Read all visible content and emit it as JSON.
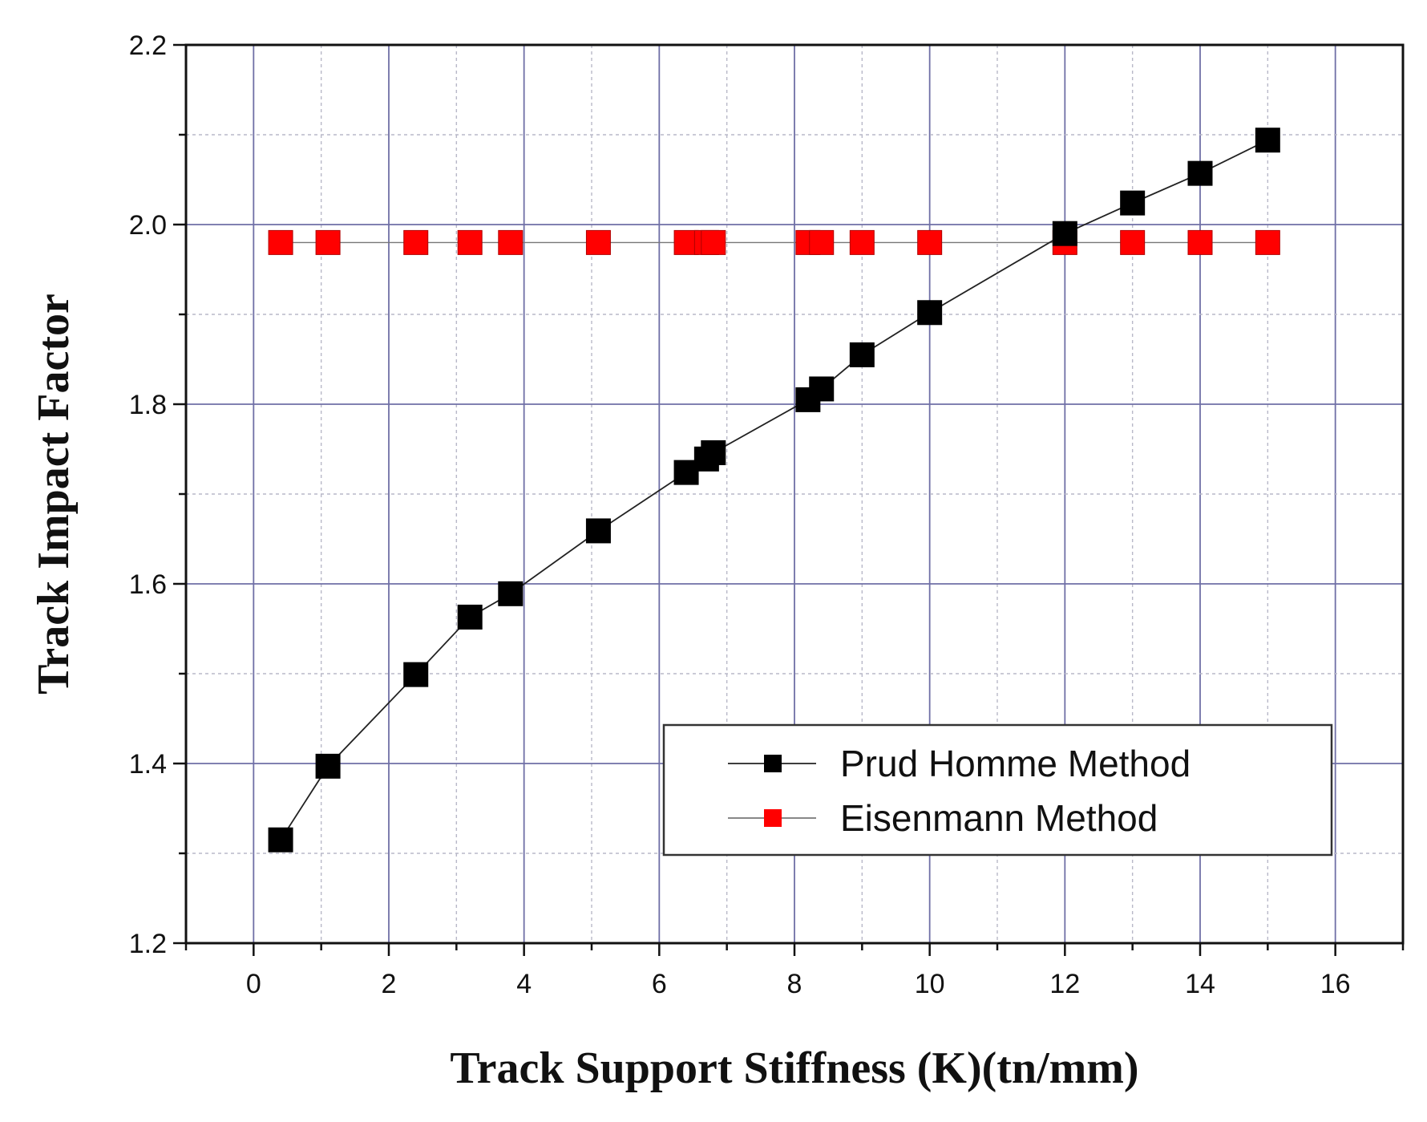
{
  "chart_data": {
    "type": "scatter",
    "xlabel": "Track Support Stiffness (K)(tn/mm)",
    "ylabel": "Track Impact Factor",
    "xlim": [
      -1,
      17
    ],
    "ylim": [
      1.2,
      2.2
    ],
    "x_ticks": [
      "0",
      "2",
      "4",
      "6",
      "8",
      "10",
      "12",
      "14",
      "16"
    ],
    "y_ticks": [
      "1.2",
      "1.4",
      "1.6",
      "1.8",
      "2.0",
      "2.2"
    ],
    "grid": true,
    "legend_position": "bottom-right",
    "series": [
      {
        "name": "Prud Homme Method",
        "color": "#000000",
        "marker": "square",
        "x": [
          0.4,
          1.1,
          2.4,
          3.2,
          3.8,
          5.1,
          6.4,
          6.7,
          6.8,
          8.2,
          8.4,
          9.0,
          10.0,
          12.0,
          13.0,
          14.0,
          15.0
        ],
        "y": [
          1.315,
          1.397,
          1.499,
          1.563,
          1.589,
          1.659,
          1.724,
          1.739,
          1.746,
          1.805,
          1.817,
          1.855,
          1.902,
          1.99,
          2.024,
          2.057,
          2.094
        ]
      },
      {
        "name": "Eisenmann Method",
        "color": "#ff0000",
        "marker": "square",
        "x": [
          0.4,
          1.1,
          2.4,
          3.2,
          3.8,
          5.1,
          6.4,
          6.7,
          6.8,
          8.2,
          8.4,
          9.0,
          10.0,
          12.0,
          13.0,
          14.0,
          15.0
        ],
        "y": [
          1.98,
          1.98,
          1.98,
          1.98,
          1.98,
          1.98,
          1.98,
          1.98,
          1.98,
          1.98,
          1.98,
          1.98,
          1.98,
          1.98,
          1.98,
          1.98,
          1.98
        ]
      }
    ]
  }
}
